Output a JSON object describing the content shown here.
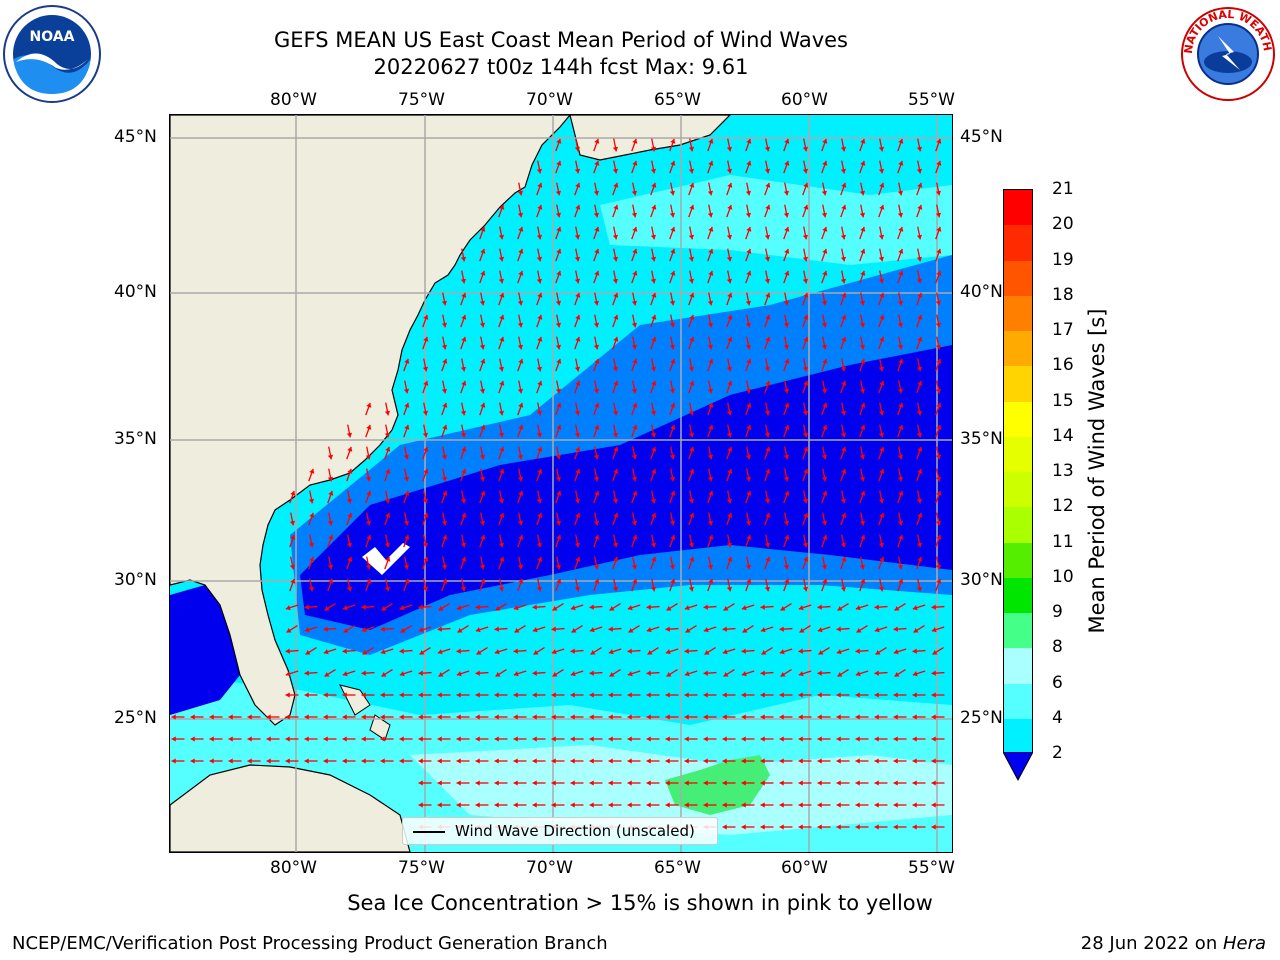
{
  "header": {
    "title_line1": "GEFS MEAN US East Coast Mean Period of Wind Waves",
    "title_line2": "20220627 t00z 144h fcst   Max: 9.61"
  },
  "logos": {
    "left": {
      "icon": "noaa-logo-icon",
      "text": "NOAA"
    },
    "right": {
      "icon": "nws-logo-icon",
      "text": "NATIONAL WEATHER SERVICE"
    }
  },
  "map": {
    "lon_labels": [
      "80°W",
      "75°W",
      "70°W",
      "65°W",
      "60°W",
      "55°W"
    ],
    "lat_labels": [
      "45°N",
      "40°N",
      "35°N",
      "30°N",
      "25°N"
    ],
    "legend_label": "Wind Wave Direction (unscaled)",
    "arrow_color": "#ff0000",
    "land_color": "#efedde"
  },
  "colorbar": {
    "label": "Mean Period of Wind Waves [s]",
    "ticks": [
      "21",
      "20",
      "19",
      "18",
      "17",
      "16",
      "15",
      "14",
      "13",
      "12",
      "11",
      "10",
      "9",
      "8",
      "6",
      "4",
      "2"
    ],
    "colors": [
      "#ff0000",
      "#ff2a00",
      "#ff5500",
      "#ff8000",
      "#ffaa00",
      "#ffd400",
      "#ffff00",
      "#e5ff00",
      "#ccff00",
      "#aaff00",
      "#55ee00",
      "#00e600",
      "#44ff88",
      "#aaffff",
      "#55ffff",
      "#00f0ff",
      "#0080ff"
    ],
    "extend_color": "#0000ee"
  },
  "notes": {
    "sea_ice": "Sea Ice Concentration > 15% is shown in pink to yellow",
    "footer_left": "NCEP/EMC/Verification Post Processing Product Generation Branch",
    "footer_right_date": "28 Jun 2022 on ",
    "footer_right_host": "Hera"
  }
}
